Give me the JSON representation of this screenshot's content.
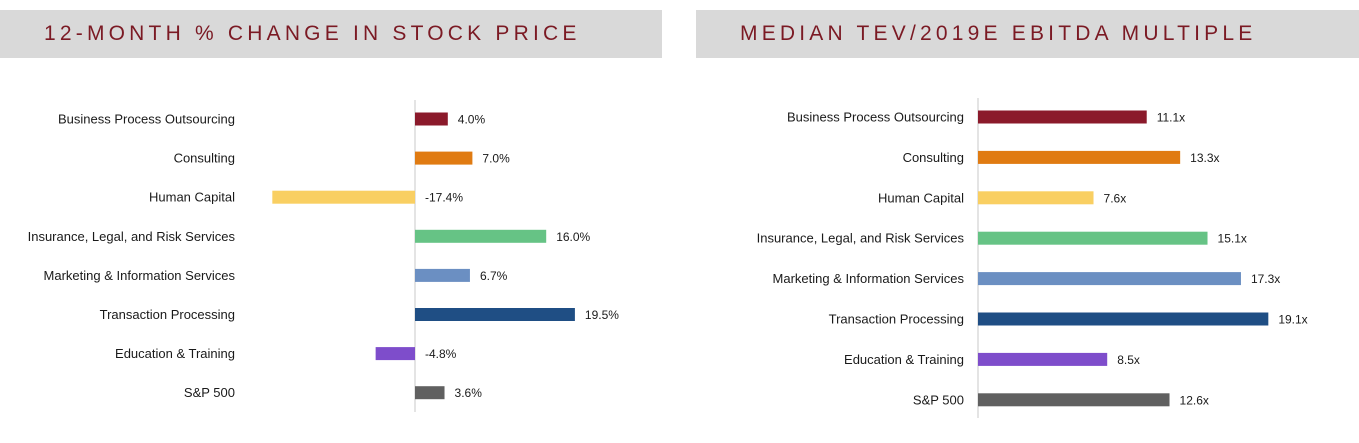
{
  "chart_data": [
    {
      "type": "bar",
      "orientation": "horizontal",
      "title": "12-MONTH % CHANGE IN STOCK PRICE",
      "categories": [
        "Business Process Outsourcing",
        "Consulting",
        "Human Capital",
        "Insurance, Legal, and Risk Services",
        "Marketing & Information Services",
        "Transaction Processing",
        "Education & Training",
        "S&P 500"
      ],
      "values": [
        4.0,
        7.0,
        -17.4,
        16.0,
        6.7,
        19.5,
        -4.8,
        3.6
      ],
      "value_labels": [
        "4.0%",
        "7.0%",
        "-17.4%",
        "16.0%",
        "6.7%",
        "19.5%",
        "-4.8%",
        "3.6%"
      ],
      "colors": [
        "#8b1a2b",
        "#e07b12",
        "#f9cf62",
        "#66c385",
        "#6b8fc2",
        "#1f4e84",
        "#7e4dcb",
        "#606060"
      ],
      "grid": false,
      "legend": "none"
    },
    {
      "type": "bar",
      "orientation": "horizontal",
      "title": "MEDIAN TEV/2019E EBITDA MULTIPLE",
      "categories": [
        "Business Process Outsourcing",
        "Consulting",
        "Human Capital",
        "Insurance, Legal, and Risk Services",
        "Marketing & Information Services",
        "Transaction Processing",
        "Education & Training",
        "S&P 500"
      ],
      "values": [
        11.1,
        13.3,
        7.6,
        15.1,
        17.3,
        19.1,
        8.5,
        12.6
      ],
      "value_labels": [
        "11.1x",
        "13.3x",
        "7.6x",
        "15.1x",
        "17.3x",
        "19.1x",
        "8.5x",
        "12.6x"
      ],
      "colors": [
        "#8b1a2b",
        "#e07b12",
        "#f9cf62",
        "#66c385",
        "#6b8fc2",
        "#1f4e84",
        "#7e4dcb",
        "#606060"
      ],
      "grid": false,
      "legend": "none"
    }
  ]
}
